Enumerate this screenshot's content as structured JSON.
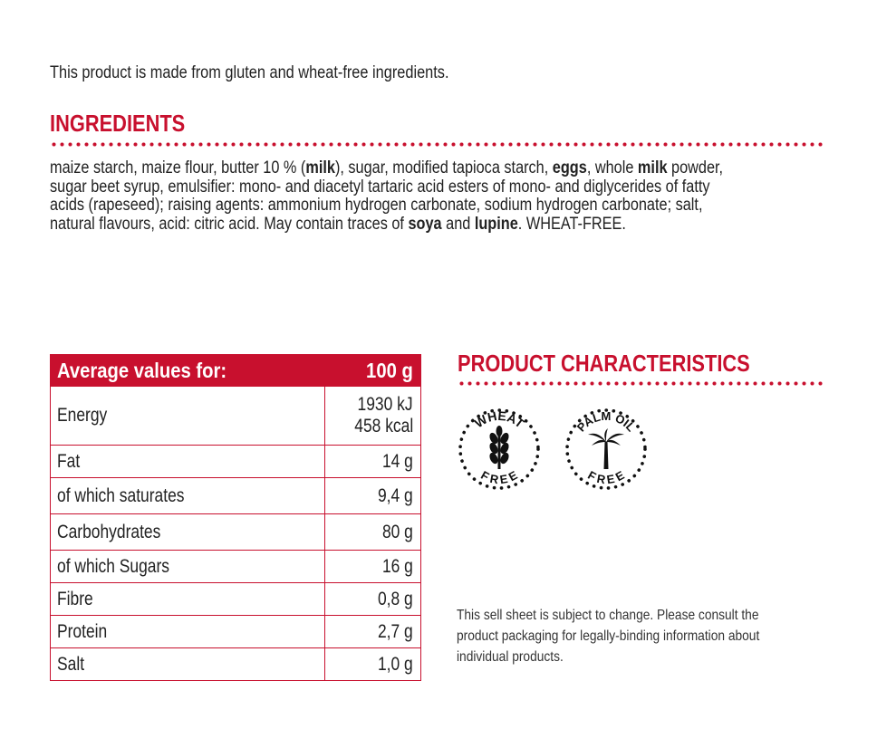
{
  "intro": "This product is made from gluten and wheat-free ingredients.",
  "ingredients": {
    "title": "INGREDIENTS",
    "lines": [
      [
        {
          "t": "maize starch, maize flour, butter 10 % (",
          "b": false
        },
        {
          "t": "milk",
          "b": true
        },
        {
          "t": "), sugar, modified tapioca starch, ",
          "b": false
        },
        {
          "t": "eggs",
          "b": true
        },
        {
          "t": ", whole ",
          "b": false
        },
        {
          "t": "milk",
          "b": true
        },
        {
          "t": " powder,",
          "b": false
        }
      ],
      [
        {
          "t": "sugar beet syrup, emulsifier: mono- and diacetyl tartaric acid esters of mono- and diglycerides of fatty",
          "b": false
        }
      ],
      [
        {
          "t": "acids (rapeseed); raising agents: ammonium hydrogen carbonate, sodium hydrogen carbonate; salt,",
          "b": false
        }
      ],
      [
        {
          "t": "natural flavours, acid: citric acid. May contain traces of ",
          "b": false
        },
        {
          "t": "soya",
          "b": true
        },
        {
          "t": " and ",
          "b": false
        },
        {
          "t": "lupine",
          "b": true
        },
        {
          "t": ". WHEAT-FREE.",
          "b": false
        }
      ]
    ]
  },
  "nutrition": {
    "header_label": "Average values for:",
    "header_value": "100 g",
    "rows": [
      {
        "label": "Energy",
        "values": [
          "1930 kJ",
          "458 kcal"
        ]
      },
      {
        "label": "Fat",
        "values": [
          "14 g"
        ]
      },
      {
        "label": "of which saturates",
        "values": [
          "9,4 g"
        ]
      },
      {
        "label": "Carbohydrates",
        "values": [
          "80 g"
        ]
      },
      {
        "label": "of which Sugars",
        "values": [
          "16 g"
        ]
      },
      {
        "label": "Fibre",
        "values": [
          "0,8 g"
        ]
      },
      {
        "label": "Protein",
        "values": [
          "2,7 g"
        ]
      },
      {
        "label": "Salt",
        "values": [
          "1,0 g"
        ]
      }
    ]
  },
  "characteristics": {
    "title": "PRODUCT CHARACTERISTICS",
    "badges": [
      {
        "icon": "wheat-icon",
        "top": "WHEAT",
        "bottom": "FREE"
      },
      {
        "icon": "palm-tree-icon",
        "top": "PALM OIL",
        "bottom": "FREE"
      }
    ]
  },
  "disclaimer": [
    "This sell sheet is subject to change. Please consult the",
    "product packaging for legally-binding information about",
    "individual products."
  ],
  "colors": {
    "accent": "#c8102e",
    "text": "#222222"
  }
}
